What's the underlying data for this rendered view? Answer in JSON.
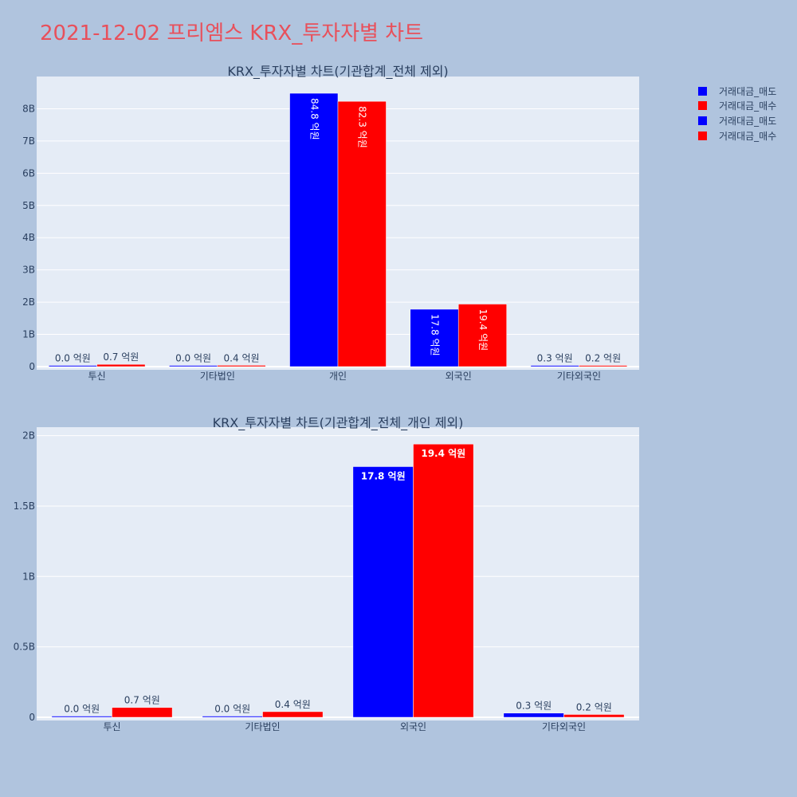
{
  "page_title": "2021-12-02 프리엠스 KRX_투자자별 차트",
  "colors": {
    "page_bg": "#b0c4de",
    "plot_bg": "#e5ecf6",
    "title": "#e8505b",
    "sell": "#0000ff",
    "buy": "#ff0000",
    "text": "#2a3f5f"
  },
  "legend": {
    "position": "top-right",
    "items": [
      {
        "label": "거래대금_매도",
        "color": "#0000ff"
      },
      {
        "label": "거래대금_매수",
        "color": "#ff0000"
      },
      {
        "label": "거래대금_매도",
        "color": "#0000ff"
      },
      {
        "label": "거래대금_매수",
        "color": "#ff0000"
      }
    ]
  },
  "chart_data": [
    {
      "type": "bar",
      "title": "KRX_투자자별 차트(기관합계_전체 제외)",
      "categories": [
        "투신",
        "기타법인",
        "개인",
        "외국인",
        "기타외국인"
      ],
      "series": [
        {
          "name": "거래대금_매도",
          "color": "#0000ff",
          "values": [
            0.0,
            0.0,
            8480000000,
            1780000000,
            30000000
          ],
          "labels": [
            "0.0 억원",
            "0.0 억원",
            "84.8 억원",
            "17.8 억원",
            "0.3 억원"
          ]
        },
        {
          "name": "거래대금_매수",
          "color": "#ff0000",
          "values": [
            70000000,
            40000000,
            8230000000,
            1940000000,
            20000000
          ],
          "labels": [
            "0.7 억원",
            "0.4 억원",
            "82.3 억원",
            "19.4 억원",
            "0.2 억원"
          ]
        }
      ],
      "ylim": [
        0,
        9000000000
      ],
      "yticks": [
        {
          "value": 0,
          "label": "0"
        },
        {
          "value": 1000000000,
          "label": "1B"
        },
        {
          "value": 2000000000,
          "label": "2B"
        },
        {
          "value": 3000000000,
          "label": "3B"
        },
        {
          "value": 4000000000,
          "label": "4B"
        },
        {
          "value": 5000000000,
          "label": "5B"
        },
        {
          "value": 6000000000,
          "label": "6B"
        },
        {
          "value": 7000000000,
          "label": "7B"
        },
        {
          "value": 8000000000,
          "label": "8B"
        }
      ],
      "grid": true
    },
    {
      "type": "bar",
      "title": "KRX_투자자별 차트(기관합계_전체_개인 제외)",
      "categories": [
        "투신",
        "기타법인",
        "외국인",
        "기타외국인"
      ],
      "series": [
        {
          "name": "거래대금_매도",
          "color": "#0000ff",
          "values": [
            0.0,
            0.0,
            1780000000,
            30000000
          ],
          "labels": [
            "0.0 억원",
            "0.0 억원",
            "17.8 억원",
            "0.3 억원"
          ]
        },
        {
          "name": "거래대금_매수",
          "color": "#ff0000",
          "values": [
            70000000,
            40000000,
            1940000000,
            20000000
          ],
          "labels": [
            "0.7 억원",
            "0.4 억원",
            "19.4 억원",
            "0.2 억원"
          ]
        }
      ],
      "ylim": [
        0,
        2060000000
      ],
      "yticks": [
        {
          "value": 0,
          "label": "0"
        },
        {
          "value": 500000000,
          "label": "0.5B"
        },
        {
          "value": 1000000000,
          "label": "1B"
        },
        {
          "value": 1500000000,
          "label": "1.5B"
        },
        {
          "value": 2000000000,
          "label": "2B"
        }
      ],
      "grid": true
    }
  ]
}
